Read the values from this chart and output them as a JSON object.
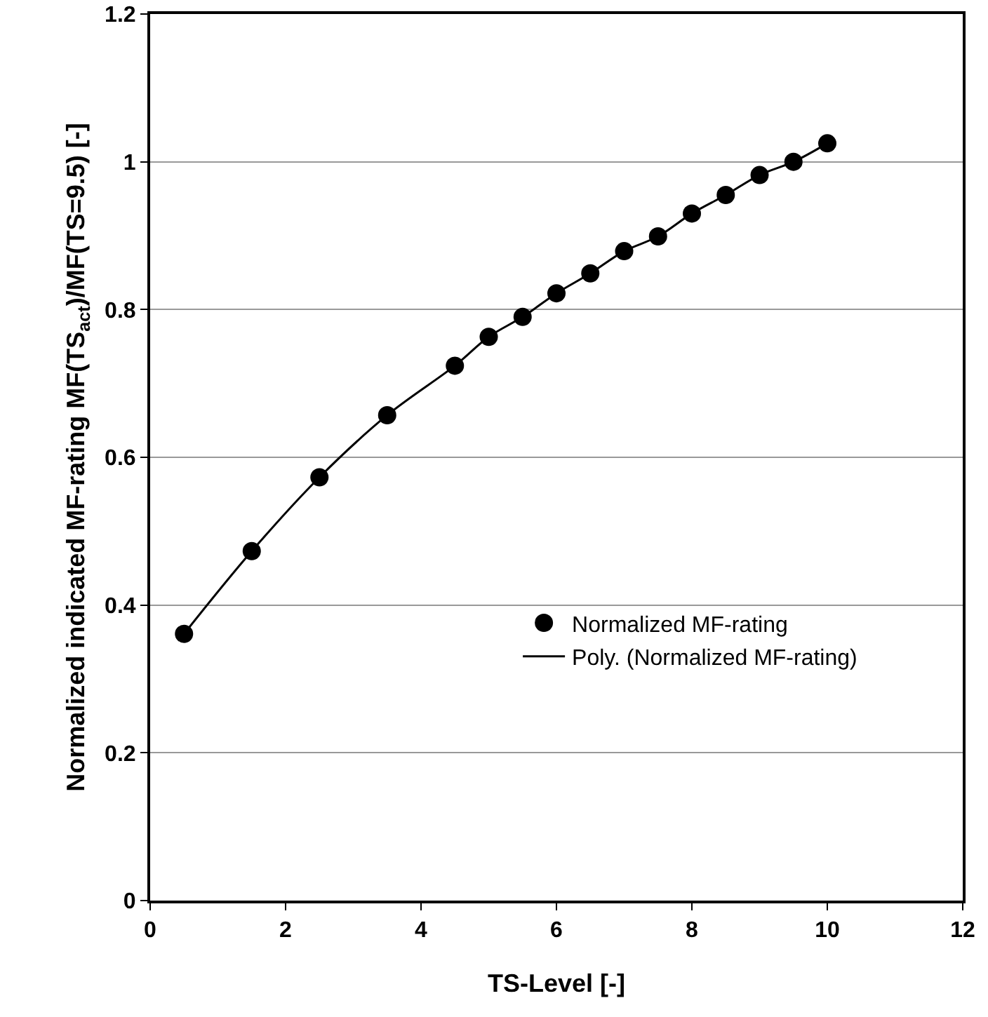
{
  "chart_data": {
    "type": "scatter",
    "xlabel": "TS-Level [-]",
    "ylabel": "Normalized indicated MF-rating MF(TS$_{act}$)/MF(TS=9.5) [-]",
    "x": [
      0.5,
      1.5,
      2.5,
      3.5,
      4.5,
      5,
      5.5,
      6,
      6.5,
      7,
      7.5,
      8,
      8.5,
      9,
      9.5,
      10
    ],
    "series": [
      {
        "name": "Normalized MF-rating",
        "marker": "circle",
        "color": "#000000",
        "values": [
          0.361,
          0.473,
          0.573,
          0.657,
          0.724,
          0.763,
          0.79,
          0.822,
          0.849,
          0.879,
          0.899,
          0.93,
          0.955,
          0.982,
          1.0,
          1.025
        ]
      },
      {
        "name": "Poly. (Normalized MF-rating)",
        "type": "line",
        "marker": "none",
        "line_style": "solid",
        "color": "#000000",
        "values": [
          0.361,
          0.473,
          0.573,
          0.657,
          0.724,
          0.763,
          0.79,
          0.822,
          0.849,
          0.879,
          0.899,
          0.93,
          0.955,
          0.982,
          1.0,
          1.025
        ]
      }
    ],
    "xlim": [
      0,
      12
    ],
    "xticks": [
      0,
      2,
      4,
      6,
      8,
      10,
      12
    ],
    "ylim": [
      0,
      1.2
    ],
    "yticks": [
      0,
      0.2,
      0.4,
      0.6,
      0.8,
      1,
      1.2
    ],
    "grid": "y",
    "legend": "right"
  }
}
